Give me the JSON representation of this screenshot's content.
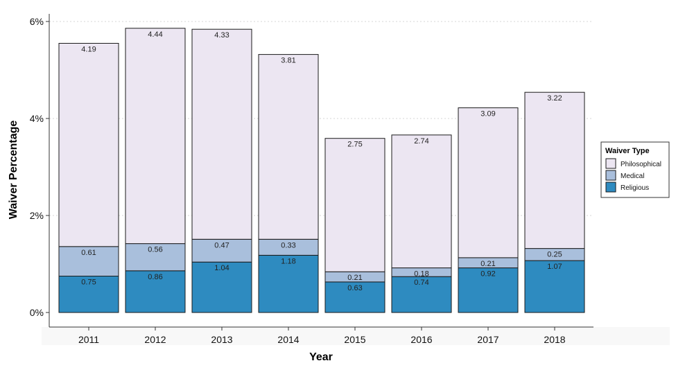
{
  "chart_data": {
    "type": "bar",
    "stacked": true,
    "categories": [
      "2011",
      "2012",
      "2013",
      "2014",
      "2015",
      "2016",
      "2017",
      "2018"
    ],
    "series": [
      {
        "name": "Religious",
        "color": "#2e8bc0",
        "values": [
          0.75,
          0.86,
          1.04,
          1.18,
          0.63,
          0.74,
          0.92,
          1.07
        ]
      },
      {
        "name": "Medical",
        "color": "#a9bfdc",
        "values": [
          0.61,
          0.56,
          0.47,
          0.33,
          0.21,
          0.18,
          0.21,
          0.25
        ]
      },
      {
        "name": "Philosophical",
        "color": "#ece6f2",
        "values": [
          4.19,
          4.44,
          4.33,
          3.81,
          2.75,
          2.74,
          3.09,
          3.22
        ]
      }
    ],
    "xlabel": "Year",
    "ylabel": "Waiver Percentage",
    "ylim": [
      0,
      6
    ],
    "yticks": [
      0,
      2,
      4,
      6
    ],
    "ytick_labels": [
      "0%",
      "2%",
      "4%",
      "6%"
    ],
    "grid": "horizontal dotted",
    "legend": {
      "title": "Waiver Type",
      "placement": "right",
      "entries": [
        "Philosophical",
        "Medical",
        "Religious"
      ]
    }
  }
}
